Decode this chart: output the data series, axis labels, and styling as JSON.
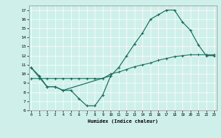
{
  "xlabel": "Humidex (Indice chaleur)",
  "bg_color": "#cff0ea",
  "line_color": "#1a6b5e",
  "curve1_x": [
    0,
    1,
    2,
    3,
    4,
    5,
    6,
    7,
    8,
    9,
    10
  ],
  "curve1_y": [
    10.7,
    9.8,
    8.6,
    8.6,
    8.2,
    8.2,
    7.3,
    6.5,
    6.5,
    7.7,
    9.8
  ],
  "curve2_x": [
    0,
    2,
    3,
    4,
    10,
    11,
    12,
    13,
    14,
    15,
    16,
    17,
    18,
    19,
    20,
    21,
    22,
    23
  ],
  "curve2_y": [
    10.7,
    8.6,
    8.6,
    8.2,
    9.8,
    10.7,
    12.0,
    13.3,
    14.5,
    16.0,
    16.5,
    17.0,
    17.0,
    15.7,
    14.8,
    13.2,
    12.0,
    12.0
  ],
  "curve3_x": [
    0,
    1,
    2,
    3,
    4,
    5,
    6,
    7,
    8,
    9,
    10,
    11,
    12,
    13,
    14,
    15,
    16,
    17,
    18,
    19,
    20,
    21,
    22,
    23
  ],
  "curve3_y": [
    9.5,
    9.5,
    9.5,
    9.5,
    9.5,
    9.5,
    9.5,
    9.5,
    9.5,
    9.5,
    10.0,
    10.2,
    10.5,
    10.8,
    11.0,
    11.2,
    11.5,
    11.7,
    11.9,
    12.0,
    12.1,
    12.1,
    12.1,
    12.1
  ],
  "xlim": [
    -0.3,
    23.3
  ],
  "ylim": [
    6.0,
    17.5
  ],
  "yticks": [
    6,
    7,
    8,
    9,
    10,
    11,
    12,
    13,
    14,
    15,
    16,
    17
  ],
  "xticks": [
    0,
    1,
    2,
    3,
    4,
    5,
    6,
    7,
    8,
    9,
    10,
    11,
    12,
    13,
    14,
    15,
    16,
    17,
    18,
    19,
    20,
    21,
    22,
    23
  ]
}
